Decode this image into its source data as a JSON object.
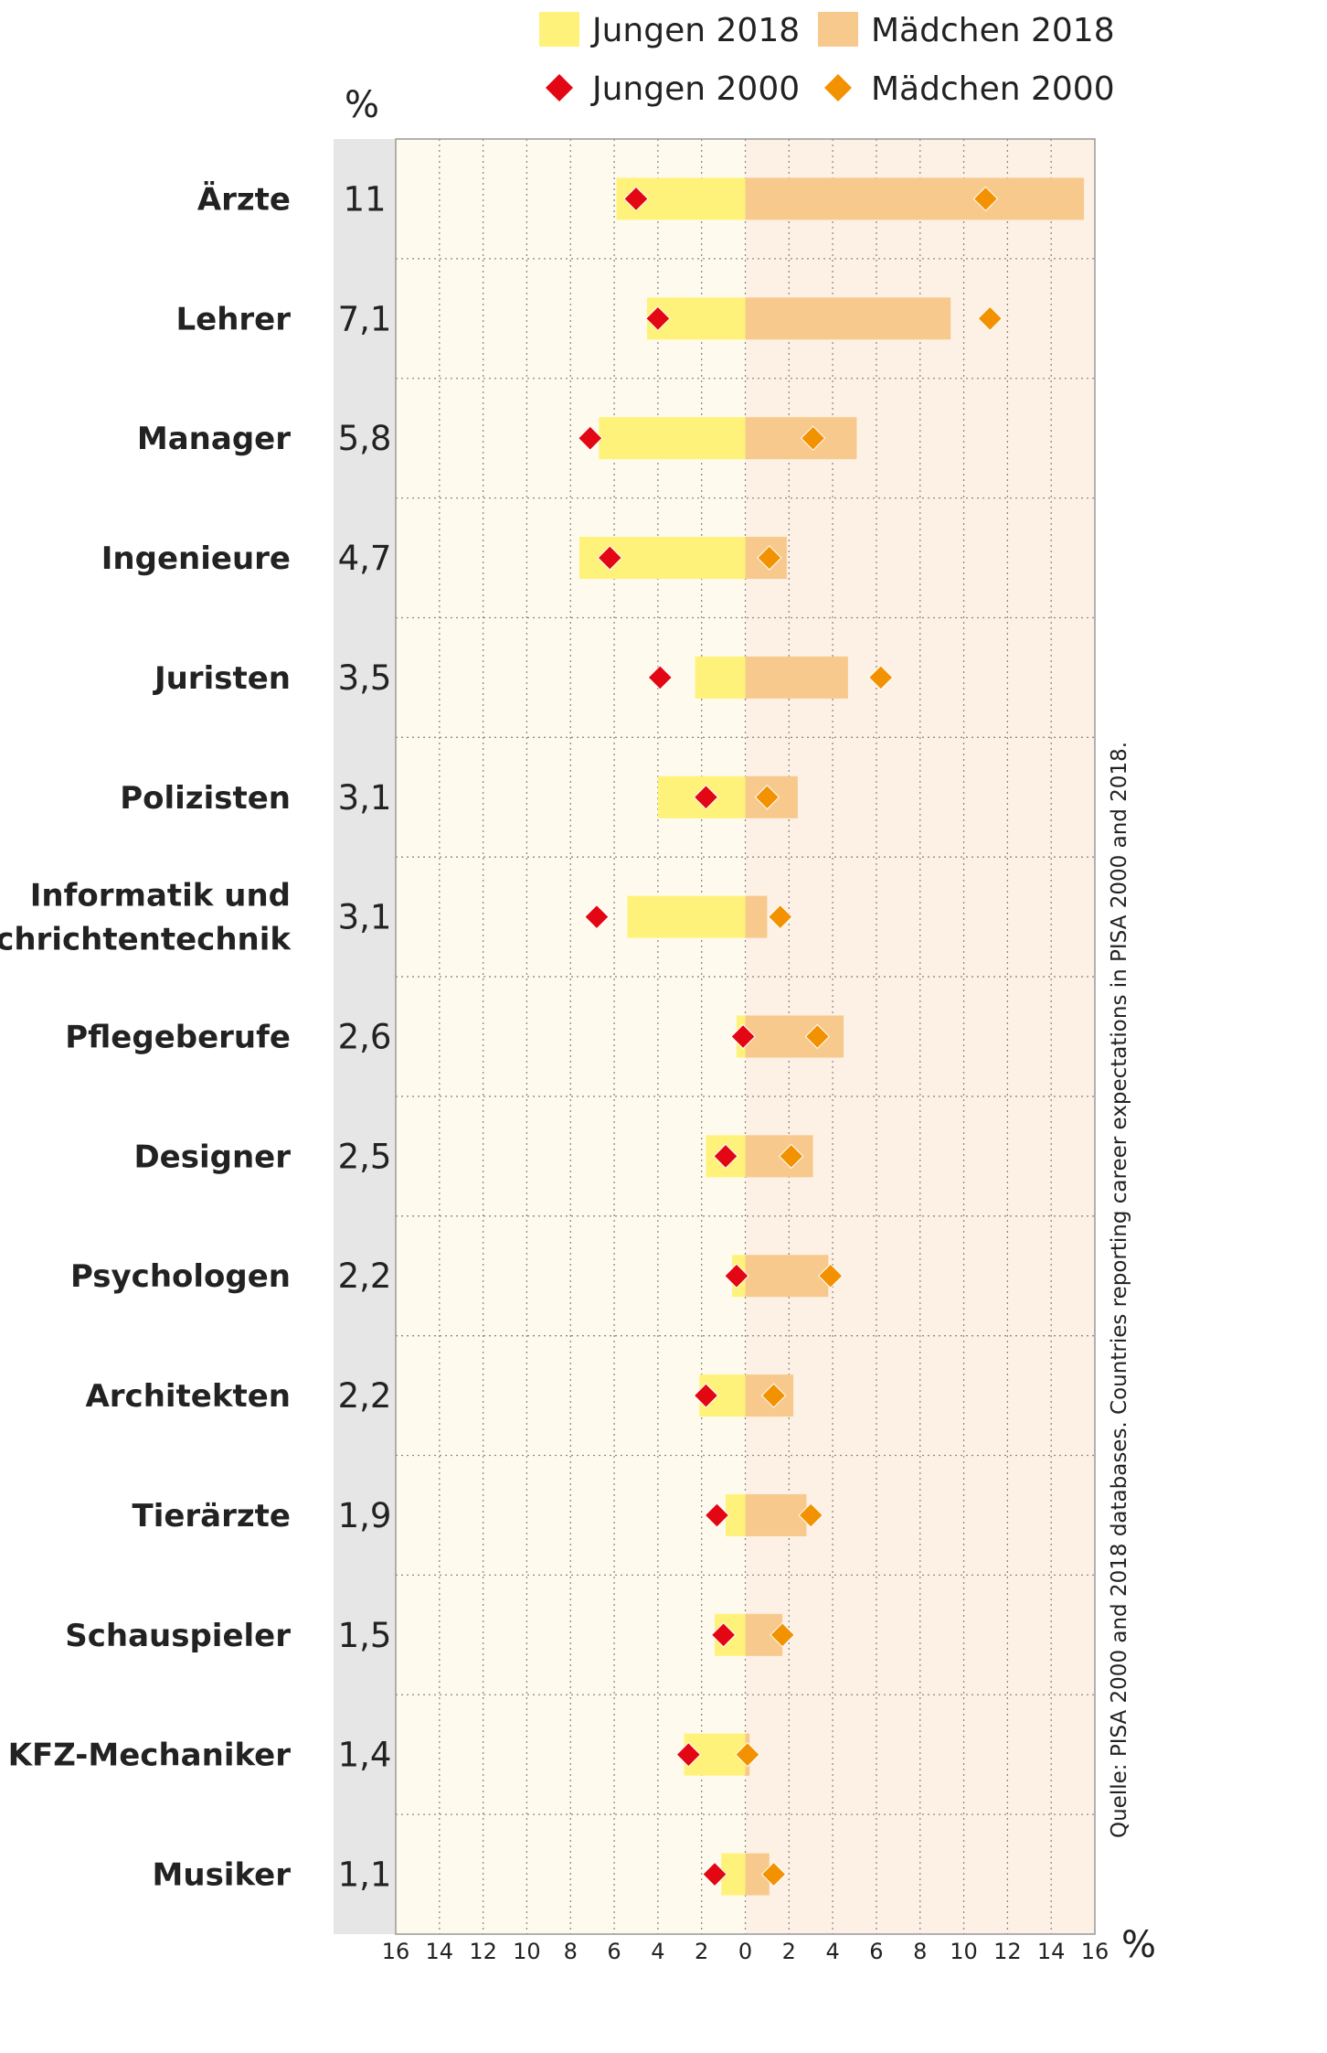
{
  "chart_data": {
    "type": "bar",
    "orientation": "horizontal-diverging",
    "categories": [
      "Ärzte",
      "Lehrer",
      "Manager",
      "Ingenieure",
      "Juristen",
      "Polizisten",
      "Informatik und Nachrichtentechnik",
      "Pflegeberufe",
      "Designer",
      "Psychologen",
      "Architekten",
      "Tierärzte",
      "Schauspieler",
      "KFZ-Mechaniker",
      "Musiker"
    ],
    "category_lines": [
      [
        "Ärzte"
      ],
      [
        "Lehrer"
      ],
      [
        "Manager"
      ],
      [
        "Ingenieure"
      ],
      [
        "Juristen"
      ],
      [
        "Polizisten"
      ],
      [
        "Informatik und",
        "Nachrichtentechnik"
      ],
      [
        "Pflegeberufe"
      ],
      [
        "Designer"
      ],
      [
        "Psychologen"
      ],
      [
        "Architekten"
      ],
      [
        "Tierärzte"
      ],
      [
        "Schauspieler"
      ],
      [
        "KFZ-Mechaniker"
      ],
      [
        "Musiker"
      ]
    ],
    "total_labels": [
      "11",
      "7,1",
      "5,8",
      "4,7",
      "3,5",
      "3,1",
      "3,1",
      "2,6",
      "2,5",
      "2,2",
      "2,2",
      "1,9",
      "1,5",
      "1,4",
      "1,1"
    ],
    "total_unit": "%",
    "series": [
      {
        "name": "Jungen 2018",
        "kind": "bar",
        "side": "left",
        "color": "#fff27a",
        "values": [
          5.9,
          4.5,
          6.7,
          7.6,
          2.3,
          4.0,
          5.4,
          0.4,
          1.8,
          0.6,
          2.1,
          0.9,
          1.4,
          2.8,
          1.1
        ]
      },
      {
        "name": "Mädchen 2018",
        "kind": "bar",
        "side": "right",
        "color": "#f8c98c",
        "values": [
          15.5,
          9.4,
          5.1,
          1.9,
          4.7,
          2.4,
          1.0,
          4.5,
          3.1,
          3.8,
          2.2,
          2.8,
          1.7,
          0.2,
          1.1
        ]
      },
      {
        "name": "Jungen 2000",
        "kind": "marker",
        "side": "left",
        "color": "#e30613",
        "values": [
          5.0,
          4.0,
          7.1,
          6.2,
          3.9,
          1.8,
          6.8,
          0.1,
          0.9,
          0.4,
          1.8,
          1.3,
          1.0,
          2.6,
          1.4
        ]
      },
      {
        "name": "Mädchen 2000",
        "kind": "marker",
        "side": "right",
        "color": "#f39200",
        "values": [
          11.0,
          11.2,
          3.1,
          1.1,
          6.2,
          1.0,
          1.6,
          3.3,
          2.1,
          3.9,
          1.3,
          3.0,
          1.7,
          0.1,
          1.3
        ]
      }
    ],
    "x_ticks": [
      "16",
      "14",
      "12",
      "10",
      "8",
      "6",
      "4",
      "2",
      "0",
      "2",
      "4",
      "6",
      "8",
      "10",
      "12",
      "14",
      "16"
    ],
    "xlim": [
      -16,
      16
    ],
    "xlabel": "%",
    "legend_position": "top",
    "source": "Quelle: PISA 2000 and 2018 databases. Countries reporting career expectations in PISA 2000 and 2018.",
    "colors": {
      "bg_left": "#fefbee",
      "bg_right": "#fdf1e6",
      "total_column": "#e6e6e6",
      "grid": "#8a8a8a",
      "axis": "#999999"
    }
  }
}
